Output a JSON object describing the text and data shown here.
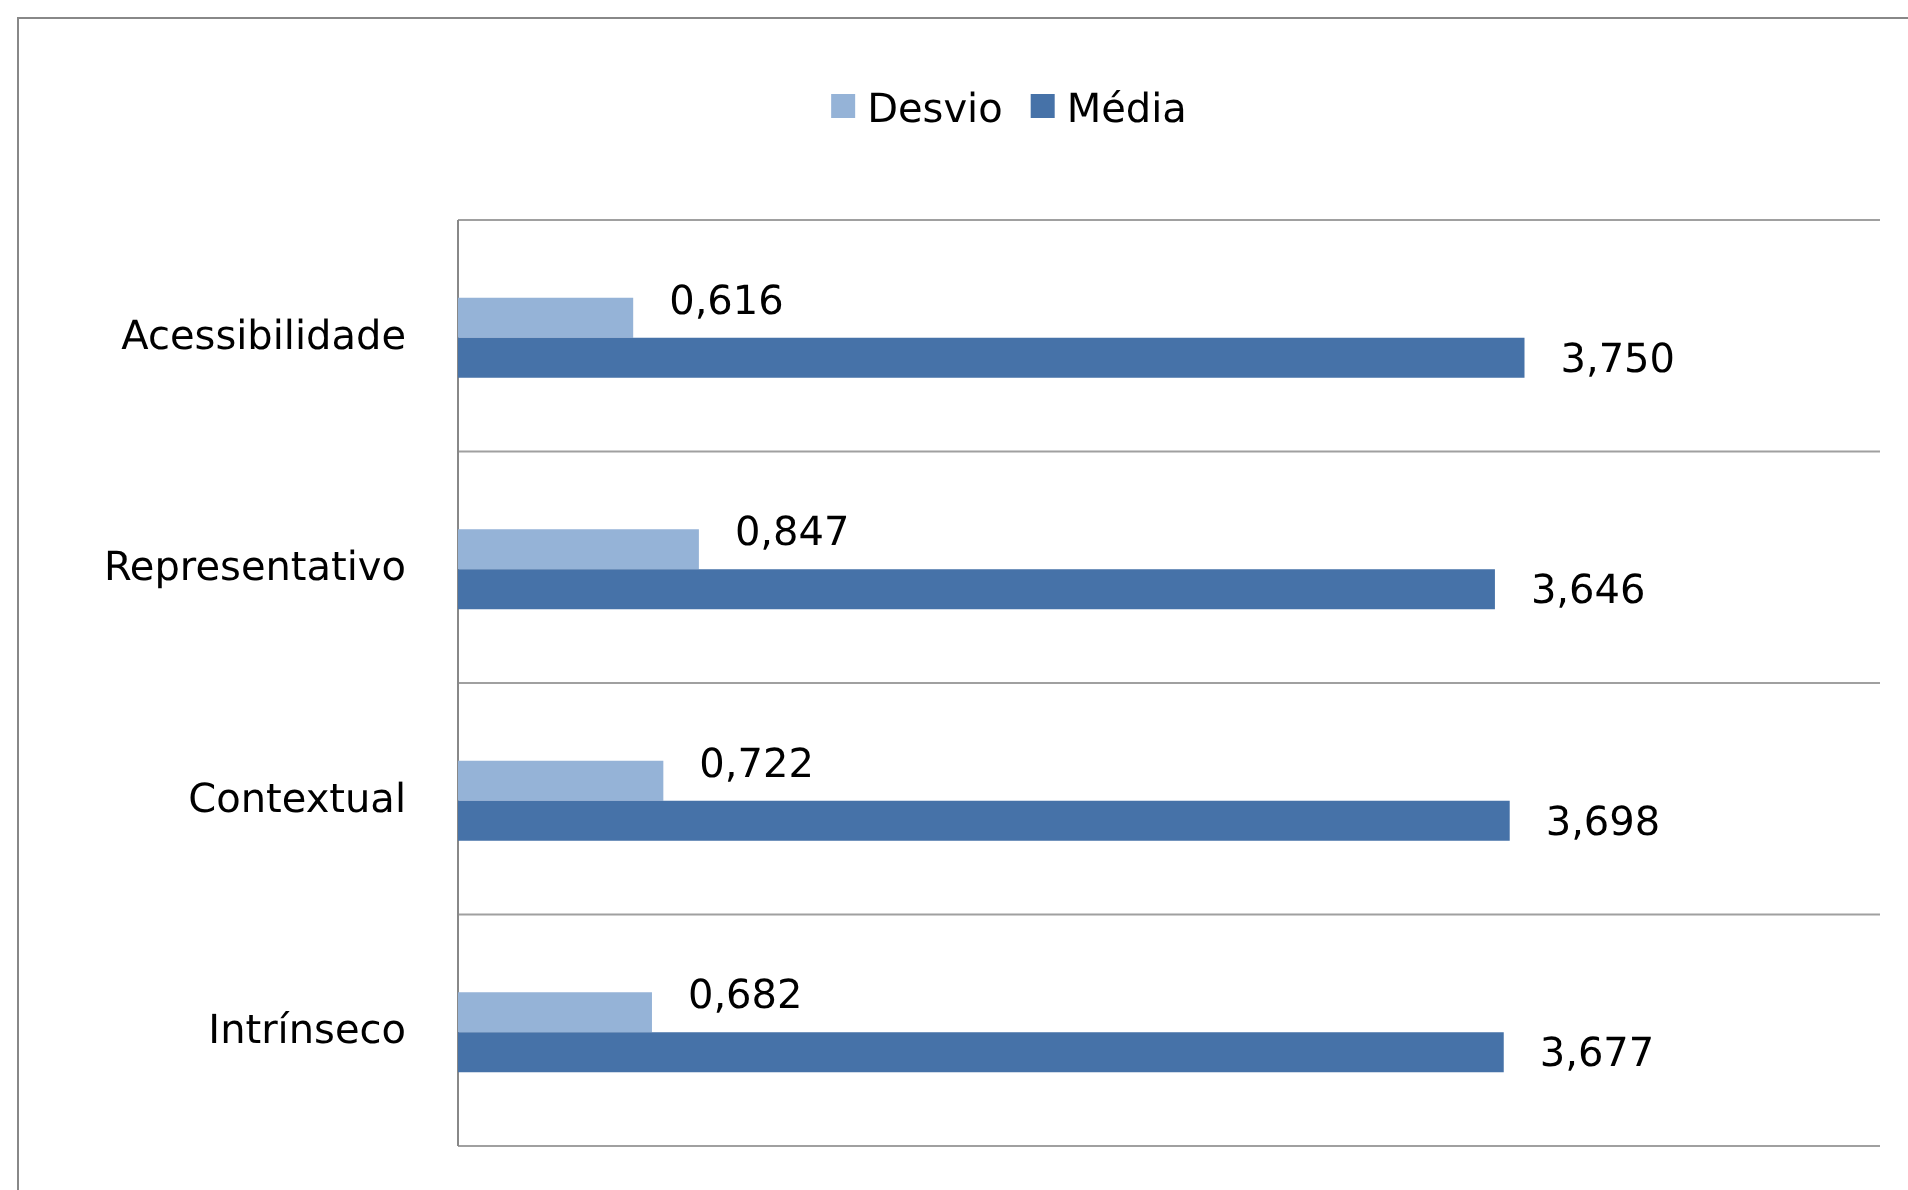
{
  "chart_data": {
    "type": "bar",
    "orientation": "horizontal",
    "categories": [
      "Acessibilidade",
      "Representativo",
      "Contextual",
      "Intrínseco"
    ],
    "series": [
      {
        "name": "Desvio",
        "color": "#95b3d7",
        "values": [
          0.616,
          0.847,
          0.722,
          0.682
        ],
        "value_labels": [
          "0,616",
          "0,847",
          "0,722",
          "0,682"
        ]
      },
      {
        "name": "Média",
        "color": "#4672a8",
        "values": [
          3.75,
          3.646,
          3.698,
          3.677
        ],
        "value_labels": [
          "3,750",
          "3,646",
          "3,698",
          "3,677"
        ]
      }
    ],
    "tick_labels": "y",
    "grid": "y",
    "legend": "top"
  }
}
